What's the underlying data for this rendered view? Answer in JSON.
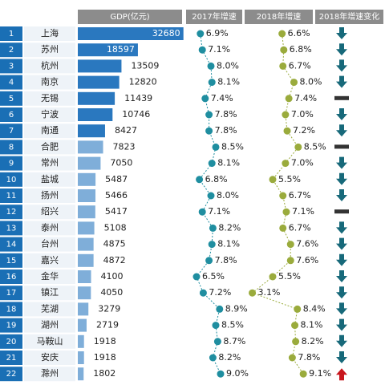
{
  "chart_data": {
    "type": "bar",
    "categories": [
      "上海",
      "苏州",
      "杭州",
      "南京",
      "无锡",
      "宁波",
      "南通",
      "合肥",
      "常州",
      "盐城",
      "扬州",
      "绍兴",
      "泰州",
      "台州",
      "嘉兴",
      "金华",
      "镇江",
      "芜湖",
      "湖州",
      "马鞍山",
      "安庆",
      "滁州"
    ],
    "ranks": [
      1,
      2,
      3,
      4,
      5,
      6,
      7,
      8,
      9,
      10,
      11,
      12,
      13,
      14,
      15,
      16,
      17,
      18,
      19,
      20,
      21,
      22
    ],
    "headers": [
      "GDP(亿元)",
      "2017年增速",
      "2018年增速",
      "2018年增速变化"
    ],
    "xlim": [
      0,
      33500
    ],
    "series": [
      {
        "name": "GDP(亿元)",
        "color": "#2a78bf",
        "values": [
          32680,
          18597,
          13509,
          12820,
          11439,
          10746,
          8427,
          7823,
          7050,
          5487,
          5466,
          5417,
          5108,
          4875,
          4872,
          4100,
          4050,
          3279,
          2719,
          1918,
          1918,
          1802
        ]
      },
      {
        "name": "2017年增速",
        "color": "#1f8ea0",
        "values": [
          6.9,
          7.1,
          8.0,
          8.1,
          7.4,
          7.8,
          7.8,
          8.5,
          8.1,
          6.8,
          8.0,
          7.1,
          8.2,
          8.1,
          7.8,
          6.5,
          7.2,
          8.9,
          8.5,
          8.7,
          8.2,
          9.0
        ],
        "value_labels": [
          "6.9%",
          "7.1%",
          "8.0%",
          "8.1%",
          "7.4%",
          "7.8%",
          "7.8%",
          "8.5%",
          "8.1%",
          "6.8%",
          "8.0%",
          "7.1%",
          "8.2%",
          "8.1%",
          "7.8%",
          "6.5%",
          "7.2%",
          "8.9%",
          "8.5%",
          "8.7%",
          "8.2%",
          "9.0%"
        ]
      },
      {
        "name": "2018年增速",
        "color": "#9aab3c",
        "values": [
          6.6,
          6.8,
          6.7,
          8.0,
          7.4,
          7.0,
          7.2,
          8.5,
          7.0,
          5.5,
          6.7,
          7.1,
          6.7,
          7.6,
          7.6,
          5.5,
          3.1,
          8.4,
          8.1,
          8.2,
          7.8,
          9.1
        ],
        "value_labels": [
          "6.6%",
          "6.8%",
          "6.7%",
          "8.0%",
          "7.4%",
          "7.0%",
          "7.2%",
          "8.5%",
          "7.0%",
          "5.5%",
          "6.7%",
          "7.1%",
          "6.7%",
          "7.6%",
          "7.6%",
          "5.5%",
          "3.1%",
          "8.4%",
          "8.1%",
          "8.2%",
          "7.8%",
          "9.1%"
        ]
      }
    ],
    "change": [
      "down",
      "down",
      "down",
      "down",
      "flat",
      "down",
      "down",
      "flat",
      "down",
      "down",
      "down",
      "flat",
      "down",
      "down",
      "down",
      "down",
      "down",
      "down",
      "down",
      "down",
      "down",
      "up"
    ]
  }
}
